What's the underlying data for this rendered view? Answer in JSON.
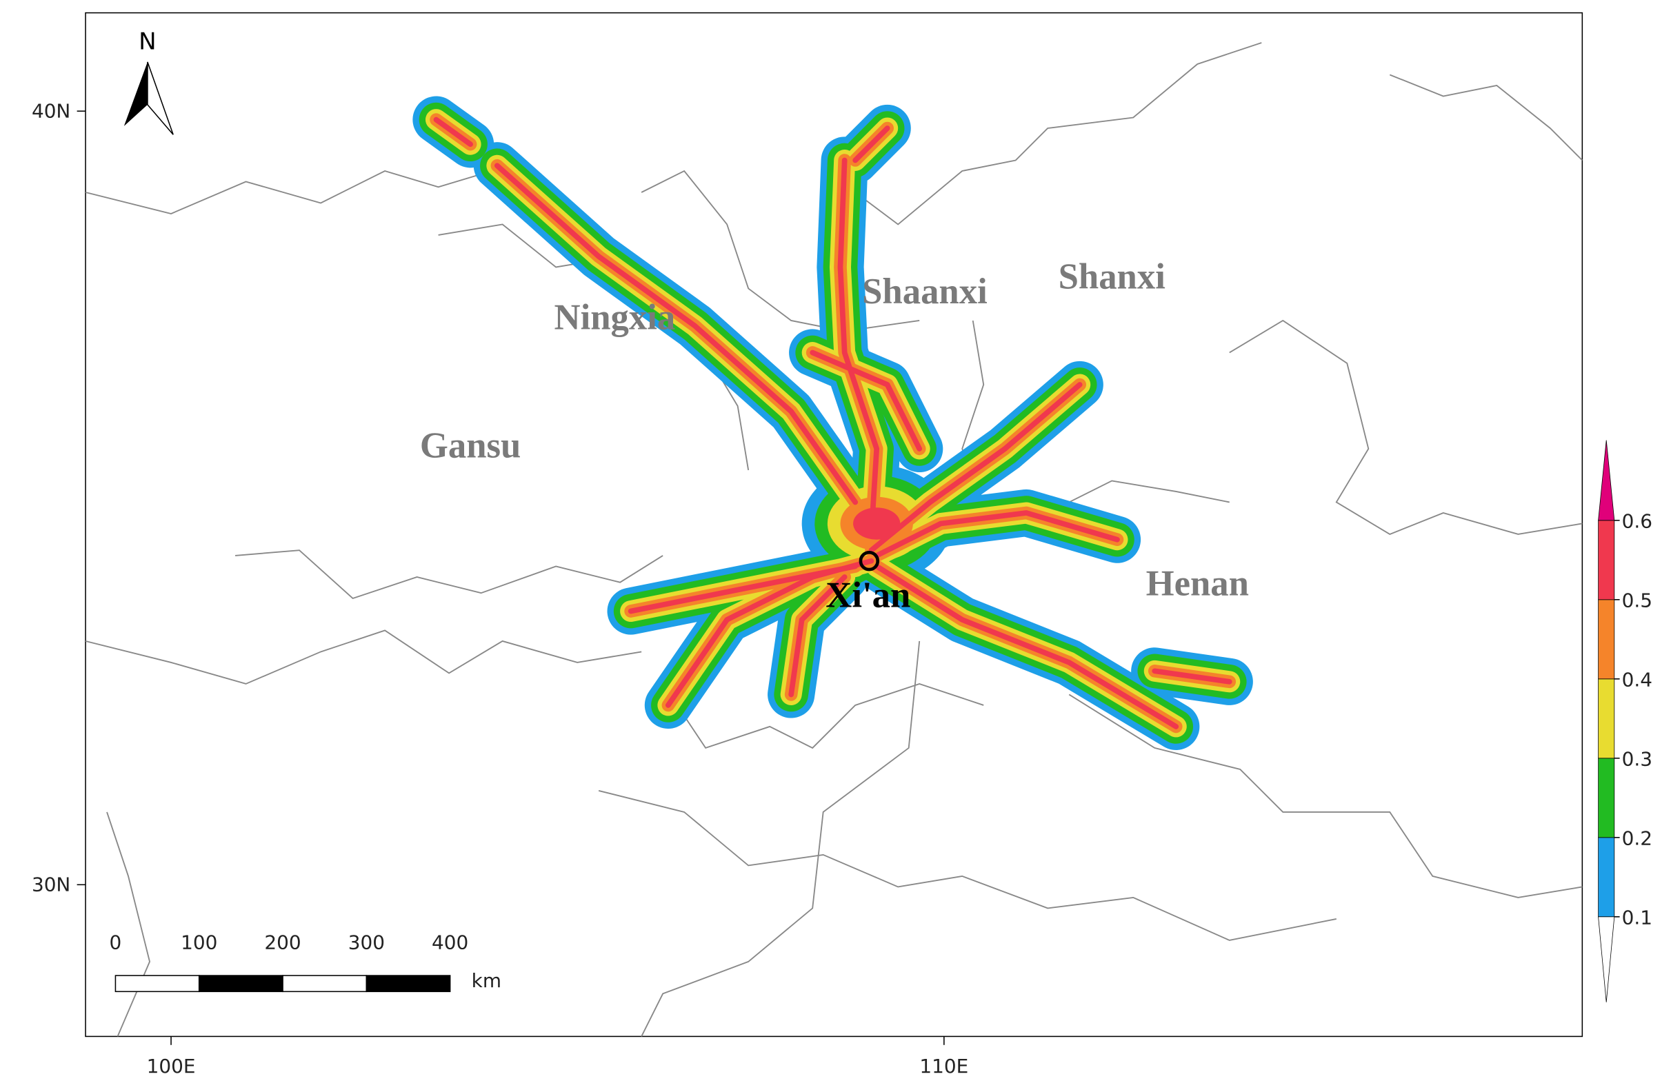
{
  "map": {
    "north_arrow": "N",
    "lat_ticks": [
      {
        "value": 40,
        "label": "40N"
      },
      {
        "value": 30,
        "label": "30N"
      }
    ],
    "lon_ticks": [
      {
        "value": 100,
        "label": "100E"
      },
      {
        "value": 110,
        "label": "110E"
      }
    ],
    "regions": [
      "Shaanxi",
      "Shanxi",
      "Ningxia",
      "Gansu",
      "Henan"
    ],
    "city": "Xi'an",
    "scale_bar": {
      "values": [
        0,
        100,
        200,
        300,
        400
      ],
      "unit": "km"
    },
    "colorbar": {
      "levels": [
        0.1,
        0.2,
        0.3,
        0.4,
        0.5,
        0.6
      ],
      "colors": [
        "#1e9fe8",
        "#22bb22",
        "#e8dc30",
        "#f5842a",
        "#f0384e"
      ],
      "over_color": "#e0007a",
      "under_color": "#ffffff"
    }
  }
}
